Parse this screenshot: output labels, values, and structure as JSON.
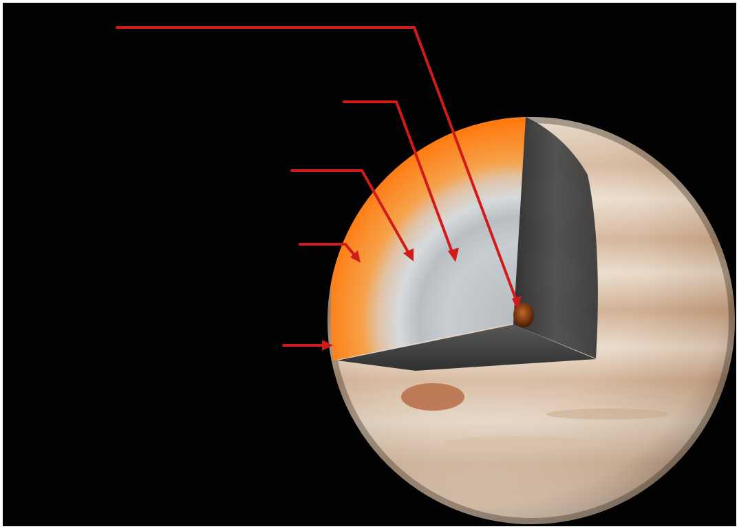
{
  "diagram": {
    "colors": {
      "background": "#020202",
      "frame": "#ffffff",
      "arrow": "#d11a1a",
      "outer_layer": "#ff8a1e",
      "middle_layer": "#c6ccd2",
      "inner_layer": "#aeb3b8",
      "core": "#6a2a08",
      "cut_face": "#4a4a4a",
      "planet_band_light": "#e9dfd2",
      "planet_band_dark": "#b98660",
      "great_red_spot": "#b86c48"
    },
    "labels": [],
    "arrow_icons": [
      "arrow-right-icon",
      "arrow-diagonal-icon"
    ]
  }
}
